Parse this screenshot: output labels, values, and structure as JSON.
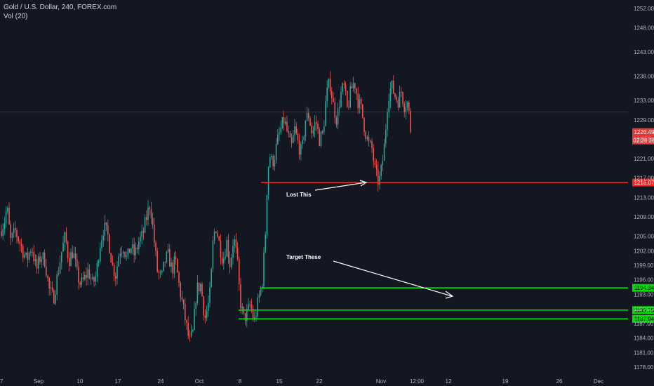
{
  "header": {
    "title": "Gold / U.S. Dollar, 240, FOREX.com",
    "volume": "Vol (20)"
  },
  "colors": {
    "background": "#131722",
    "up": "#26a69a",
    "down": "#ef5350",
    "support": "#00e000",
    "resistance": "#ff1f1f",
    "text": "#b2b5be",
    "annotation": "#ffffff"
  },
  "chart_data": {
    "type": "candlestick",
    "title": "Gold / U.S. Dollar, 240, FOREX.com",
    "ylim": [
      1176.5,
      1254
    ],
    "y_ticks": [
      "1252.00",
      "1248.00",
      "1243.00",
      "1238.00",
      "1233.00",
      "1229.00",
      "1225.00",
      "1221.00",
      "1217.00",
      "1213.00",
      "1209.00",
      "1205.00",
      "1202.00",
      "1199.00",
      "1196.00",
      "1193.00",
      "1190.00",
      "1187.00",
      "1184.00",
      "1181.00",
      "1178.00"
    ],
    "x_ticks": [
      "7",
      "Sep",
      "10",
      "17",
      "24",
      "Oct",
      "8",
      "15",
      "22",
      "Nov",
      "12:00",
      "12",
      "19",
      "26",
      "Dec"
    ],
    "waypoints": [
      [
        0,
        1206
      ],
      [
        6,
        1208
      ],
      [
        10,
        1211
      ],
      [
        15,
        1204
      ],
      [
        22,
        1206
      ],
      [
        30,
        1203
      ],
      [
        38,
        1200
      ],
      [
        45,
        1203
      ],
      [
        52,
        1198
      ],
      [
        58,
        1201
      ],
      [
        64,
        1200
      ],
      [
        70,
        1194
      ],
      [
        76,
        1192
      ],
      [
        82,
        1197
      ],
      [
        88,
        1202
      ],
      [
        93,
        1205
      ],
      [
        98,
        1200
      ],
      [
        104,
        1202
      ],
      [
        110,
        1197
      ],
      [
        115,
        1195
      ],
      [
        120,
        1196
      ],
      [
        126,
        1198
      ],
      [
        132,
        1195
      ],
      [
        137,
        1197
      ],
      [
        142,
        1203
      ],
      [
        148,
        1207
      ],
      [
        154,
        1205
      ],
      [
        160,
        1199
      ],
      [
        165,
        1197
      ],
      [
        170,
        1202
      ],
      [
        176,
        1203
      ],
      [
        181,
        1200
      ],
      [
        186,
        1203
      ],
      [
        192,
        1201
      ],
      [
        198,
        1204
      ],
      [
        203,
        1205
      ],
      [
        209,
        1209
      ],
      [
        214,
        1212
      ],
      [
        219,
        1205
      ],
      [
        224,
        1198
      ],
      [
        230,
        1196
      ],
      [
        235,
        1200
      ],
      [
        240,
        1201
      ],
      [
        245,
        1198
      ],
      [
        250,
        1200
      ],
      [
        255,
        1195
      ],
      [
        260,
        1191
      ],
      [
        265,
        1187
      ],
      [
        270,
        1183
      ],
      [
        275,
        1185
      ],
      [
        280,
        1194
      ],
      [
        286,
        1195
      ],
      [
        292,
        1188
      ],
      [
        297,
        1191
      ],
      [
        300,
        1194
      ],
      [
        304,
        1205
      ],
      [
        308,
        1207
      ],
      [
        313,
        1203
      ],
      [
        318,
        1200
      ],
      [
        323,
        1204
      ],
      [
        328,
        1199
      ],
      [
        333,
        1205
      ],
      [
        338,
        1200
      ],
      [
        342,
        1192
      ],
      [
        347,
        1188
      ],
      [
        352,
        1189
      ],
      [
        357,
        1191
      ],
      [
        362,
        1187
      ],
      [
        366,
        1190
      ],
      [
        370,
        1193
      ],
      [
        374,
        1196
      ],
      [
        378,
        1205
      ],
      [
        381,
        1217
      ],
      [
        384,
        1222
      ],
      [
        388,
        1220
      ],
      [
        392,
        1222
      ],
      [
        396,
        1225
      ],
      [
        400,
        1227
      ],
      [
        405,
        1229
      ],
      [
        410,
        1226
      ],
      [
        415,
        1223
      ],
      [
        420,
        1227
      ],
      [
        425,
        1224
      ],
      [
        430,
        1222
      ],
      [
        435,
        1229
      ],
      [
        440,
        1230
      ],
      [
        445,
        1226
      ],
      [
        450,
        1229
      ],
      [
        455,
        1225
      ],
      [
        460,
        1226
      ],
      [
        465,
        1234
      ],
      [
        470,
        1237
      ],
      [
        475,
        1232
      ],
      [
        480,
        1229
      ],
      [
        485,
        1234
      ],
      [
        490,
        1236
      ],
      [
        495,
        1231
      ],
      [
        500,
        1235
      ],
      [
        505,
        1237
      ],
      [
        510,
        1233
      ],
      [
        515,
        1231
      ],
      [
        520,
        1227
      ],
      [
        525,
        1224
      ],
      [
        530,
        1223
      ],
      [
        535,
        1218
      ],
      [
        540,
        1216
      ],
      [
        544,
        1219
      ],
      [
        548,
        1224
      ],
      [
        553,
        1234
      ],
      [
        558,
        1236
      ],
      [
        563,
        1234
      ],
      [
        568,
        1233
      ],
      [
        572,
        1235
      ],
      [
        576,
        1232
      ],
      [
        580,
        1233
      ],
      [
        584,
        1229
      ],
      [
        587,
        1226.5
      ]
    ],
    "levels": [
      {
        "name": "resistance",
        "price": 1216.07,
        "label": "1216.07",
        "x_start": 372
      },
      {
        "name": "support-1",
        "price": 1194.34,
        "label": "1194.34",
        "x_start": 372
      },
      {
        "name": "support-2",
        "price": 1189.75,
        "label": "1189.75",
        "x_start": 340
      },
      {
        "name": "support-3",
        "price": 1187.94,
        "label": "1187.94",
        "x_start": 340
      }
    ],
    "last_price": {
      "price": 1226.49,
      "label": "1226.49",
      "countdown": "02:28:26"
    },
    "crosshair_price": 1230.6
  },
  "annotations": {
    "lost": "Lost This",
    "target": "Target These"
  }
}
